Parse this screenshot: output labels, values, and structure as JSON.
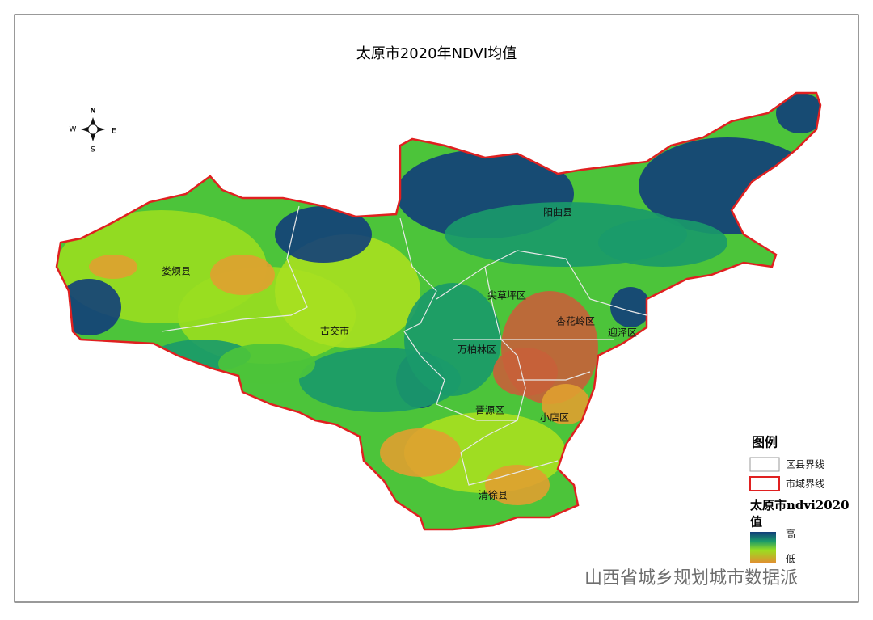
{
  "title": "太原市2020年NDVI均值",
  "compass": {
    "n": "N",
    "s": "S",
    "w": "W",
    "e": "E"
  },
  "districts": [
    "阳曲县",
    "娄烦县",
    "尖草坪区",
    "古交市",
    "杏花岭区",
    "迎泽区",
    "万柏林区",
    "晋源区",
    "小店区",
    "清徐县"
  ],
  "legend": {
    "title": "图例",
    "items": [
      "区县界线",
      "市域界线"
    ],
    "raster_title": "太原市ndvi2020",
    "raster_subtitle": "值",
    "high": "高",
    "low": "低"
  },
  "watermark": "山西省城乡规划城市数据派"
}
